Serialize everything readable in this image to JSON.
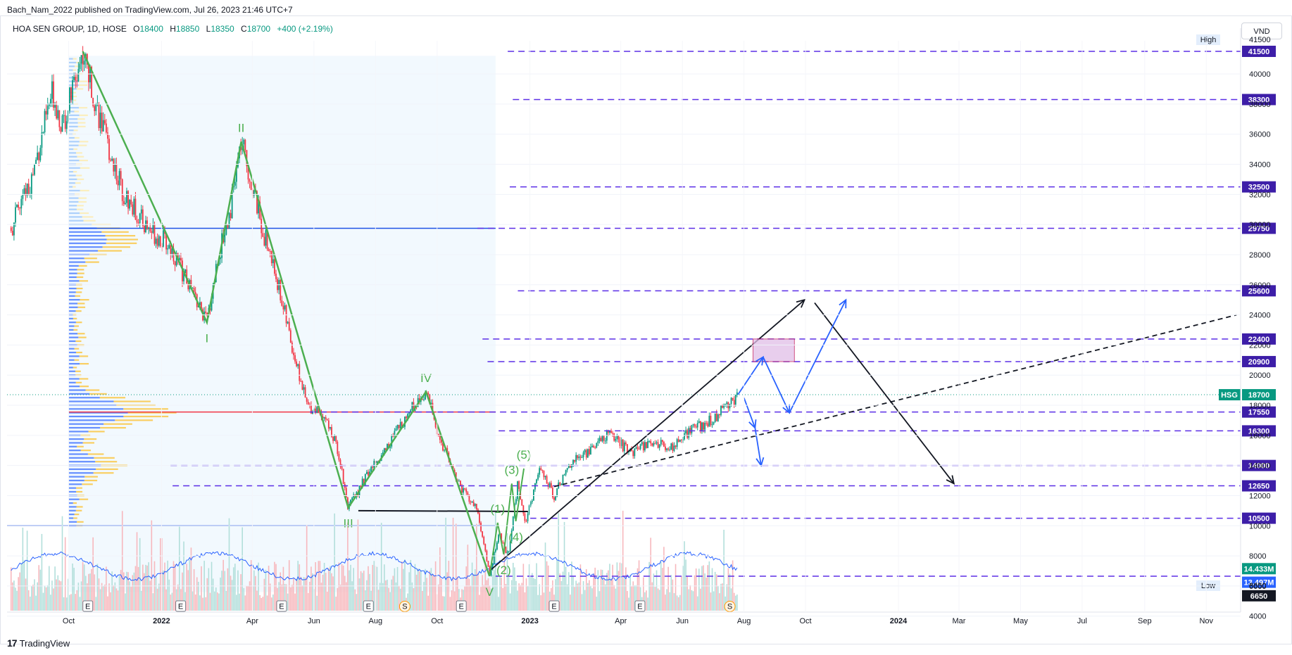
{
  "header": {
    "publisher": "Bach_Nam_2022 published on TradingView.com, Jul 26, 2023 21:46 UTC+7",
    "symbol": "HOA SEN GROUP, 1D, HOSE",
    "ohlc": [
      {
        "k": "O",
        "v": "18400"
      },
      {
        "k": "H",
        "v": "18850"
      },
      {
        "k": "L",
        "v": "18350"
      },
      {
        "k": "C",
        "v": "18700"
      }
    ],
    "change": "+400 (+2.19%)",
    "currency": "VND"
  },
  "footer": {
    "brand": "TradingView",
    "logo_glyph": "17"
  },
  "colors": {
    "up": "#089981",
    "down": "#f23645",
    "wave": "#4caf50",
    "level": "#5b2ee6",
    "blue_arrow": "#2962ff",
    "poc": "#f23645",
    "va": "#1e53e5",
    "vol_line": "#2962ff"
  },
  "chart_data": {
    "type": "candlestick",
    "title": "",
    "symbol": "HSG",
    "timeframe": "1D",
    "ylim": [
      4000,
      42000
    ],
    "y_ticks": [
      4000,
      6000,
      8000,
      10000,
      12000,
      14000,
      16000,
      18000,
      20000,
      22000,
      24000,
      26000,
      28000,
      30000,
      32000,
      34000,
      36000,
      38000,
      40000
    ],
    "x_ticks": [
      {
        "label": "Oct",
        "date": "2021-10-01",
        "bold": false
      },
      {
        "label": "2022",
        "date": "2022-01-01",
        "bold": true
      },
      {
        "label": "Apr",
        "date": "2022-04-01",
        "bold": false
      },
      {
        "label": "Jun",
        "date": "2022-06-01",
        "bold": false
      },
      {
        "label": "Aug",
        "date": "2022-08-01",
        "bold": false
      },
      {
        "label": "Oct",
        "date": "2022-10-01",
        "bold": false
      },
      {
        "label": "2023",
        "date": "2023-01-01",
        "bold": true
      },
      {
        "label": "Apr",
        "date": "2023-04-01",
        "bold": false
      },
      {
        "label": "Jun",
        "date": "2023-06-01",
        "bold": false
      },
      {
        "label": "Aug",
        "date": "2023-08-01",
        "bold": false
      },
      {
        "label": "Oct",
        "date": "2023-10-01",
        "bold": false
      },
      {
        "label": "2024",
        "date": "2024-01-01",
        "bold": true
      },
      {
        "label": "Mar",
        "date": "2024-03-01",
        "bold": false
      },
      {
        "label": "May",
        "date": "2024-05-01",
        "bold": false
      },
      {
        "label": "Jul",
        "date": "2024-07-01",
        "bold": false
      },
      {
        "label": "Sep",
        "date": "2024-09-01",
        "bold": false
      },
      {
        "label": "Nov",
        "date": "2024-11-01",
        "bold": false
      }
    ],
    "price_path": [
      [
        "2021-08-05",
        29800
      ],
      [
        "2021-08-25",
        33000
      ],
      [
        "2021-09-15",
        38800
      ],
      [
        "2021-09-25",
        36500
      ],
      [
        "2021-10-15",
        41500
      ],
      [
        "2021-11-05",
        36000
      ],
      [
        "2021-11-25",
        32000
      ],
      [
        "2021-12-15",
        30000
      ],
      [
        "2022-01-10",
        28500
      ],
      [
        "2022-01-28",
        26000
      ],
      [
        "2022-02-15",
        23500
      ],
      [
        "2022-02-25",
        27500
      ],
      [
        "2022-03-10",
        31000
      ],
      [
        "2022-03-21",
        35500
      ],
      [
        "2022-04-10",
        30000
      ],
      [
        "2022-04-25",
        26500
      ],
      [
        "2022-05-10",
        22000
      ],
      [
        "2022-05-25",
        18000
      ],
      [
        "2022-06-10",
        17500
      ],
      [
        "2022-06-25",
        15000
      ],
      [
        "2022-07-05",
        11200
      ],
      [
        "2022-07-25",
        13500
      ],
      [
        "2022-08-15",
        15500
      ],
      [
        "2022-09-05",
        17800
      ],
      [
        "2022-09-20",
        18900
      ],
      [
        "2022-10-05",
        15500
      ],
      [
        "2022-10-25",
        12500
      ],
      [
        "2022-11-10",
        11000
      ],
      [
        "2022-11-22",
        6650
      ],
      [
        "2022-12-01",
        9500
      ],
      [
        "2022-12-10",
        8000
      ],
      [
        "2022-12-20",
        12800
      ],
      [
        "2022-12-28",
        10200
      ],
      [
        "2023-01-10",
        13800
      ],
      [
        "2023-01-25",
        12000
      ],
      [
        "2023-02-10",
        14200
      ],
      [
        "2023-03-01",
        15000
      ],
      [
        "2023-03-20",
        16200
      ],
      [
        "2023-04-10",
        14800
      ],
      [
        "2023-05-01",
        15600
      ],
      [
        "2023-05-20",
        15200
      ],
      [
        "2023-06-10",
        16400
      ],
      [
        "2023-07-01",
        17000
      ],
      [
        "2023-07-26",
        18700
      ]
    ],
    "current_price": 18700,
    "current_symbol_tag": "HSG",
    "high": {
      "label": "High",
      "value": 41500
    },
    "low": {
      "label": "Low",
      "value": 6650
    },
    "horizontal_levels": [
      {
        "value": 41500,
        "label": "41500",
        "from": "2022-12-10"
      },
      {
        "value": 38300,
        "label": "38300",
        "from": "2022-12-15"
      },
      {
        "value": 32500,
        "label": "32500",
        "from": "2022-12-12"
      },
      {
        "value": 29750,
        "label": "29750",
        "from": "2022-11-10"
      },
      {
        "value": 25600,
        "label": "25600",
        "from": "2022-12-20"
      },
      {
        "value": 22400,
        "label": "22400",
        "from": "2022-11-15"
      },
      {
        "value": 20900,
        "label": "20900",
        "from": "2022-11-20"
      },
      {
        "value": 17550,
        "label": "17550",
        "from": "2022-05-28"
      },
      {
        "value": 16300,
        "label": "16300",
        "from": "2022-12-01"
      },
      {
        "value": 14000,
        "label": "14000",
        "from": "2022-01-10"
      },
      {
        "value": 12650,
        "label": "12650",
        "from": "2022-01-12"
      },
      {
        "value": 10500,
        "label": "10500",
        "from": "2023-01-01"
      },
      {
        "value": 6650,
        "label": "6650",
        "from": "2022-11-28"
      }
    ],
    "volume_labels": [
      {
        "value": "14.433M",
        "y": 7150,
        "color": "#089981"
      },
      {
        "value": "13.497M",
        "y": 6250,
        "color": "#2962ff"
      },
      {
        "value": "6650",
        "y": 5350,
        "color": "#131722"
      }
    ],
    "volume_profile": {
      "from": "2021-10-01",
      "to": "2022-11-28",
      "poc": 17550,
      "va_high": 29750,
      "va_low": 10000
    },
    "elliott_waves": [
      {
        "label": "I",
        "date": "2022-02-15",
        "price": 23500,
        "pos": "below"
      },
      {
        "label": "II",
        "date": "2022-03-21",
        "price": 35500,
        "pos": "above"
      },
      {
        "label": "III",
        "date": "2022-07-05",
        "price": 11200,
        "pos": "below"
      },
      {
        "label": "IV",
        "date": "2022-09-20",
        "price": 18900,
        "pos": "above"
      },
      {
        "label": "V",
        "date": "2022-11-22",
        "price": 6650,
        "pos": "below"
      },
      {
        "label": "(1)",
        "date": "2022-11-30",
        "price": 10200,
        "pos": "above"
      },
      {
        "label": "(2)",
        "date": "2022-12-06",
        "price": 8100,
        "pos": "below"
      },
      {
        "label": "(3)",
        "date": "2022-12-14",
        "price": 12800,
        "pos": "above"
      },
      {
        "label": "(4)",
        "date": "2022-12-18",
        "price": 10300,
        "pos": "below"
      },
      {
        "label": "(5)",
        "date": "2022-12-26",
        "price": 13800,
        "pos": "above"
      }
    ],
    "events": [
      {
        "type": "E",
        "date": "2021-10-20"
      },
      {
        "type": "E",
        "date": "2022-01-20"
      },
      {
        "type": "E",
        "date": "2022-04-30"
      },
      {
        "type": "E",
        "date": "2022-07-25"
      },
      {
        "type": "S",
        "date": "2022-08-30"
      },
      {
        "type": "E",
        "date": "2022-10-25"
      },
      {
        "type": "E",
        "date": "2023-01-25"
      },
      {
        "type": "E",
        "date": "2023-04-20"
      },
      {
        "type": "S",
        "date": "2023-07-18"
      }
    ]
  }
}
